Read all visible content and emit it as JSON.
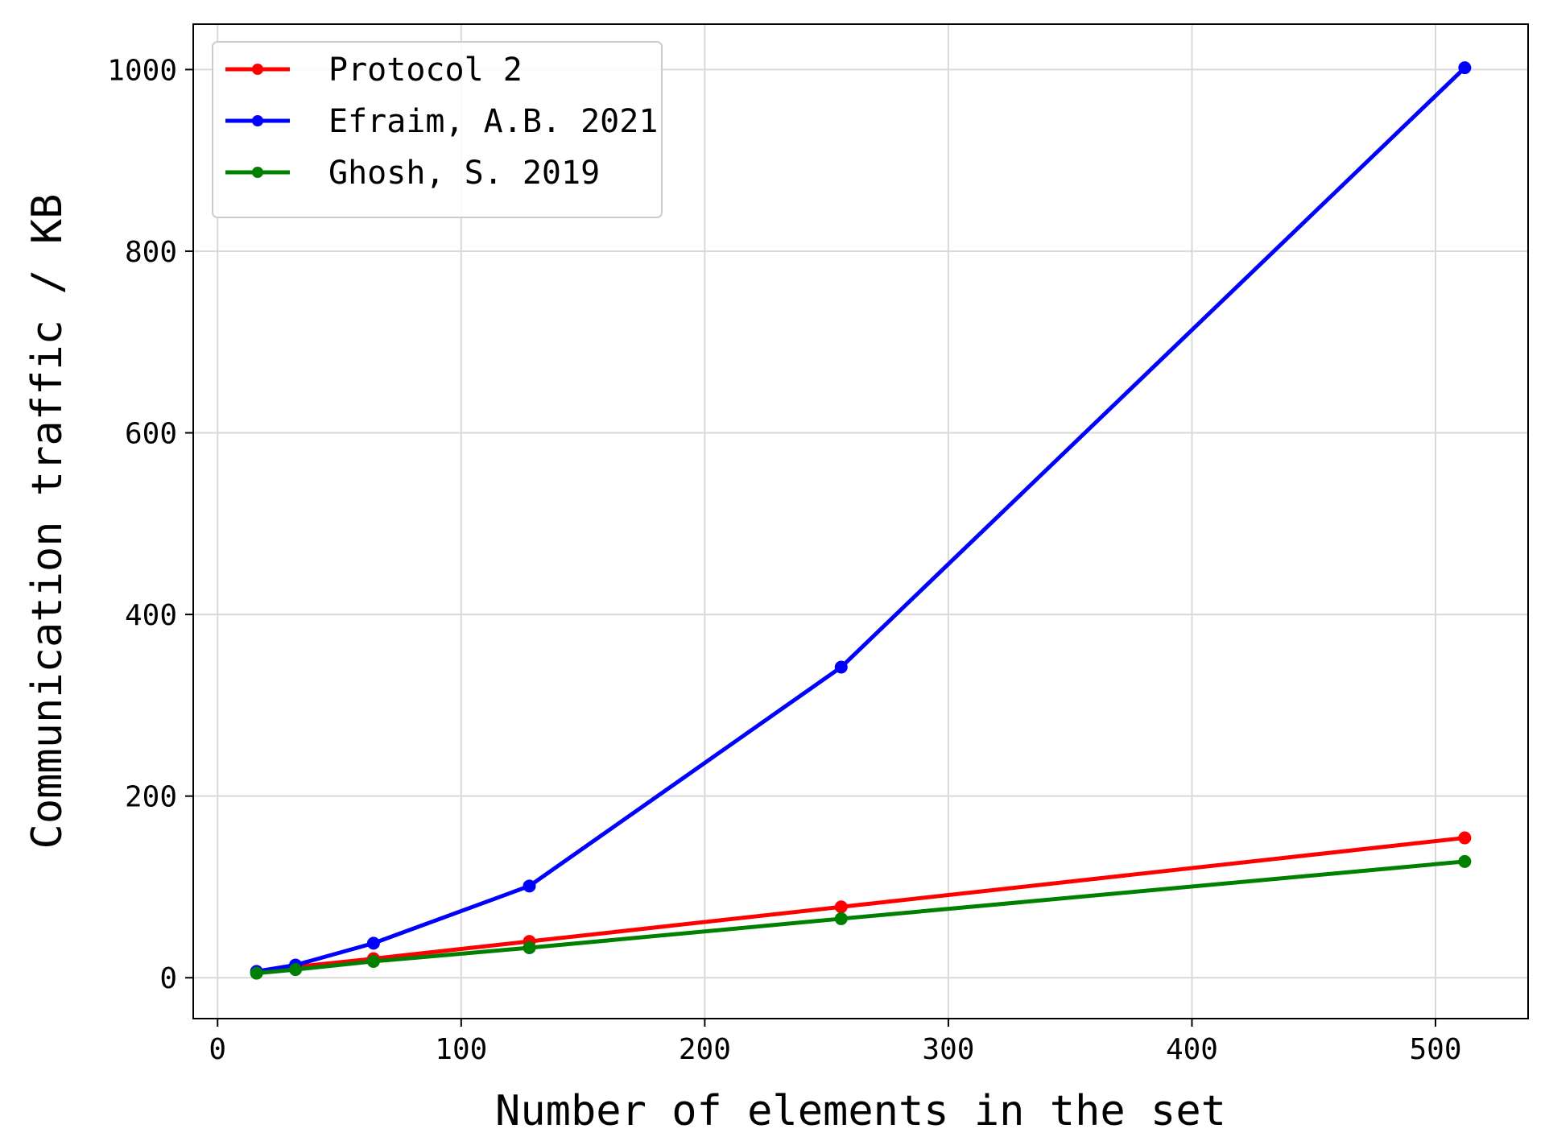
{
  "chart_data": {
    "type": "line",
    "title": "",
    "xlabel": "Number of elements in the set",
    "ylabel": "Communication traffic / KB",
    "xlim": [
      -10,
      538
    ],
    "ylim": [
      -45,
      1050
    ],
    "xticks": [
      0,
      100,
      200,
      300,
      400,
      500
    ],
    "yticks": [
      0,
      200,
      400,
      600,
      800,
      1000
    ],
    "xtick_labels": [
      "0",
      "100",
      "200",
      "300",
      "400",
      "500"
    ],
    "ytick_labels": [
      "0",
      "200",
      "400",
      "600",
      "800",
      "1000"
    ],
    "grid": true,
    "legend_position": "top-left",
    "x": [
      16,
      32,
      64,
      128,
      256,
      512
    ],
    "series": [
      {
        "name": "Protocol 2",
        "color": "#ff0000",
        "values": [
          6,
          12,
          21,
          40,
          78,
          154
        ]
      },
      {
        "name": "Efraim, A.B. 2021",
        "color": "#0000ff",
        "values": [
          7,
          14,
          38,
          101,
          342,
          1002
        ]
      },
      {
        "name": "Ghosh, S. 2019",
        "color": "#008000",
        "values": [
          5,
          9,
          18,
          33,
          65,
          128
        ]
      }
    ]
  }
}
